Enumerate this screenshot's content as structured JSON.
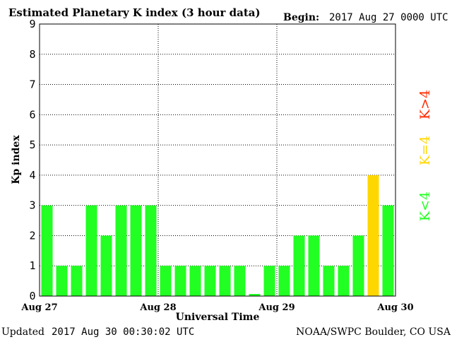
{
  "header": {
    "title": "Estimated Planetary K index (3 hour data)",
    "begin_label": "Begin:",
    "begin_value": "2017 Aug 27 0000 UTC"
  },
  "footer": {
    "updated_label": "Updated",
    "updated_value": "2017 Aug 30 00:30:02 UTC",
    "source": "NOAA/SWPC Boulder, CO USA"
  },
  "legend": {
    "low": "K<4",
    "mid": "K=4",
    "high": "K>4"
  },
  "colors": {
    "low": "#22ff22",
    "mid": "#ffd700",
    "high": "#ff2a00",
    "frame": "#000000",
    "grid": "#000000",
    "background": "#ffffff"
  },
  "chart_data": {
    "type": "bar",
    "title": "Estimated Planetary K index (3 hour data)",
    "xlabel": "Universal Time",
    "ylabel": "Kp index",
    "ylim": [
      0,
      9
    ],
    "yticks": [
      "0",
      "1",
      "2",
      "3",
      "4",
      "5",
      "6",
      "7",
      "8",
      "9"
    ],
    "x_tick_labels": [
      "Aug 27",
      "Aug 28",
      "Aug 29",
      "Aug 30"
    ],
    "interval_hours": 3,
    "grid": true,
    "legend_position": "right",
    "values": [
      3,
      1,
      1,
      3,
      2,
      3,
      3,
      3,
      1,
      1,
      1,
      1,
      1,
      1,
      0.07,
      1,
      1,
      2,
      2,
      1,
      1,
      2,
      4,
      3
    ]
  }
}
